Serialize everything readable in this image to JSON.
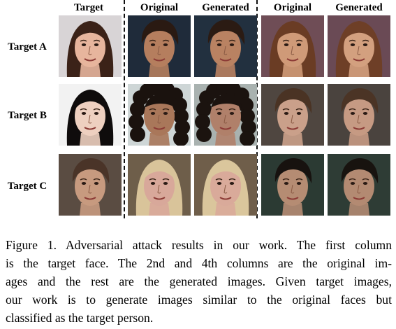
{
  "figure": {
    "column_headers": [
      "Target",
      "Original",
      "Generated",
      "Original",
      "Generated"
    ],
    "row_labels": [
      "Target A",
      "Target B",
      "Target C"
    ],
    "cells": [
      [
        {
          "icon": "face-target-a",
          "bg": "#d8d4d6",
          "skin": "#e7b59d",
          "hair": "#3b2218",
          "hair_style": "long"
        },
        {
          "icon": "face-original-a1",
          "bg": "#1f2b3a",
          "skin": "#b57e5e",
          "hair": "#2a1a12",
          "hair_style": "short"
        },
        {
          "icon": "face-generated-a1",
          "bg": "#22303f",
          "skin": "#b98262",
          "hair": "#2b1b13",
          "hair_style": "short"
        },
        {
          "icon": "face-original-a2",
          "bg": "#6f4d56",
          "skin": "#cf9a78",
          "hair": "#6a3c24",
          "hair_style": "long"
        },
        {
          "icon": "face-generated-a2",
          "bg": "#6a4a55",
          "skin": "#d3a07f",
          "hair": "#6e3f27",
          "hair_style": "long"
        }
      ],
      [
        {
          "icon": "face-target-b",
          "bg": "#f2f2f2",
          "skin": "#eed0c0",
          "hair": "#0f0c0c",
          "hair_style": "long"
        },
        {
          "icon": "face-original-b1",
          "bg": "#ced6d6",
          "skin": "#a9775a",
          "hair": "#1a120e",
          "hair_style": "curly"
        },
        {
          "icon": "face-generated-b1",
          "bg": "#a9b2b0",
          "skin": "#b0806a",
          "hair": "#1b130f",
          "hair_style": "curly"
        },
        {
          "icon": "face-original-b2",
          "bg": "#4f4640",
          "skin": "#caa08a",
          "hair": "#4a3324",
          "hair_style": "short"
        },
        {
          "icon": "face-generated-b2",
          "bg": "#4a433e",
          "skin": "#c69a83",
          "hair": "#4b3425",
          "hair_style": "short"
        }
      ],
      [
        {
          "icon": "face-target-c",
          "bg": "#5a4c42",
          "skin": "#c79a7f",
          "hair": "#4a3428",
          "hair_style": "short"
        },
        {
          "icon": "face-original-c1",
          "bg": "#6e5e4a",
          "skin": "#d8a89a",
          "hair": "#d9c49a",
          "hair_style": "long"
        },
        {
          "icon": "face-generated-c1",
          "bg": "#6f5e4a",
          "skin": "#d9aa9a",
          "hair": "#dac69c",
          "hair_style": "long"
        },
        {
          "icon": "face-original-c2",
          "bg": "#2b3a33",
          "skin": "#b58c73",
          "hair": "#17120f",
          "hair_style": "short"
        },
        {
          "icon": "face-generated-c2",
          "bg": "#2e3c35",
          "skin": "#b38a72",
          "hair": "#18130f",
          "hair_style": "short"
        }
      ]
    ]
  },
  "caption": {
    "lines": [
      "Figure 1. Adversarial attack results in our work. The first column",
      "is the target face.  The 2nd and 4th columns are the original im-",
      "ages and the rest are the generated images. Given target images,",
      "our work is to generate images similar to the original faces but",
      "classified as the target person."
    ]
  }
}
